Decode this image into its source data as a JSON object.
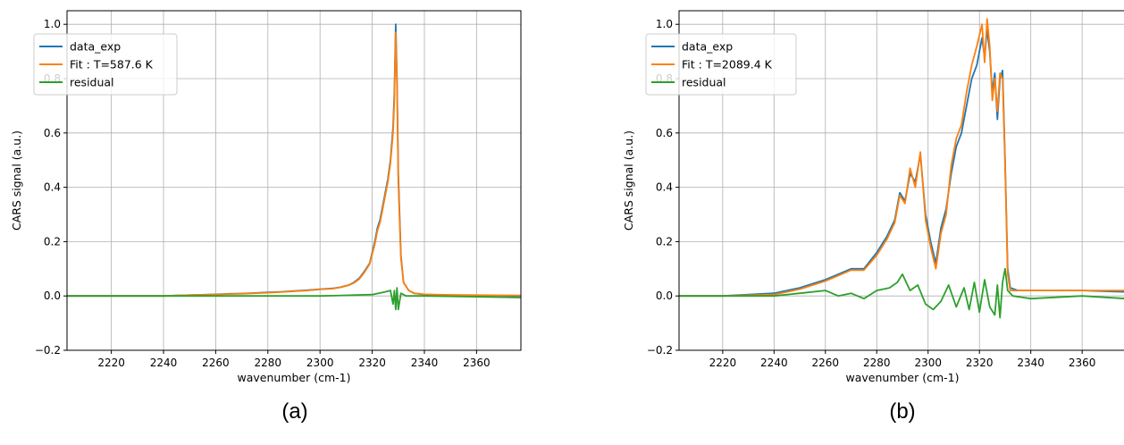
{
  "chart_data": [
    {
      "type": "line",
      "panel_label": "(a)",
      "xlabel": "wavenumber (cm-1)",
      "ylabel": "CARS signal (a.u.)",
      "xlim": [
        2203,
        2377
      ],
      "ylim": [
        -0.2,
        1.05
      ],
      "xticks": [
        2220,
        2240,
        2260,
        2280,
        2300,
        2320,
        2340,
        2360
      ],
      "yticks": [
        -0.2,
        0.0,
        0.2,
        0.4,
        0.6,
        0.8,
        1.0
      ],
      "ytick_labels": [
        "−0.2",
        "0.0",
        "0.2",
        "0.4",
        "0.6",
        "0.8",
        "1.0"
      ],
      "grid": true,
      "legend_position": "upper-left",
      "series": [
        {
          "name": "data_exp",
          "color": "#1f77b4",
          "x": [
            2203,
            2220,
            2240,
            2250,
            2260,
            2265,
            2270,
            2275,
            2280,
            2285,
            2290,
            2295,
            2300,
            2305,
            2308,
            2311,
            2313,
            2315,
            2317,
            2319,
            2320,
            2321,
            2322,
            2323,
            2324,
            2325,
            2326,
            2327,
            2328,
            2328.5,
            2329,
            2329.5,
            2330,
            2331,
            2332,
            2334,
            2336,
            2340,
            2350,
            2360,
            2377
          ],
          "y": [
            0.0,
            0.0,
            0.0,
            0.003,
            0.006,
            0.008,
            0.009,
            0.011,
            0.013,
            0.015,
            0.018,
            0.021,
            0.025,
            0.028,
            0.033,
            0.04,
            0.05,
            0.065,
            0.09,
            0.12,
            0.16,
            0.2,
            0.25,
            0.28,
            0.33,
            0.38,
            0.43,
            0.5,
            0.62,
            0.75,
            1.0,
            0.8,
            0.45,
            0.15,
            0.05,
            0.02,
            0.01,
            0.005,
            0.003,
            0.002,
            0.0
          ]
        },
        {
          "name": "Fit : T=587.6 K",
          "color": "#ff7f0e",
          "x": [
            2203,
            2220,
            2240,
            2250,
            2260,
            2265,
            2270,
            2275,
            2280,
            2285,
            2290,
            2295,
            2300,
            2305,
            2308,
            2311,
            2313,
            2315,
            2317,
            2319,
            2320,
            2321,
            2322,
            2323,
            2324,
            2325,
            2326,
            2327,
            2328,
            2328.5,
            2329,
            2329.5,
            2330,
            2331,
            2332,
            2334,
            2336,
            2340,
            2350,
            2360,
            2377
          ],
          "y": [
            0.0,
            0.0,
            0.0,
            0.003,
            0.005,
            0.007,
            0.008,
            0.01,
            0.012,
            0.014,
            0.017,
            0.02,
            0.024,
            0.027,
            0.032,
            0.039,
            0.048,
            0.062,
            0.087,
            0.117,
            0.155,
            0.19,
            0.24,
            0.27,
            0.32,
            0.37,
            0.42,
            0.49,
            0.6,
            0.72,
            0.97,
            0.78,
            0.42,
            0.14,
            0.05,
            0.02,
            0.01,
            0.006,
            0.004,
            0.003,
            0.002
          ]
        },
        {
          "name": "residual",
          "color": "#2ca02c",
          "x": [
            2203,
            2240,
            2270,
            2300,
            2320,
            2325,
            2327,
            2328,
            2328.5,
            2329,
            2329.5,
            2330,
            2331,
            2333,
            2340,
            2360,
            2377
          ],
          "y": [
            0.0,
            0.0,
            0.0,
            0.0,
            0.005,
            0.015,
            0.02,
            -0.03,
            0.02,
            -0.05,
            0.03,
            -0.05,
            0.01,
            0.0,
            0.0,
            -0.003,
            -0.006
          ]
        }
      ]
    },
    {
      "type": "line",
      "panel_label": "(b)",
      "xlabel": "wavenumber (cm-1)",
      "ylabel": "CARS signal (a.u.)",
      "xlim": [
        2203,
        2377
      ],
      "ylim": [
        -0.2,
        1.05
      ],
      "xticks": [
        2220,
        2240,
        2260,
        2280,
        2300,
        2320,
        2340,
        2360
      ],
      "yticks": [
        -0.2,
        0.0,
        0.2,
        0.4,
        0.6,
        0.8,
        1.0
      ],
      "ytick_labels": [
        "−0.2",
        "0.0",
        "0.2",
        "0.4",
        "0.6",
        "0.8",
        "1.0"
      ],
      "grid": true,
      "legend_position": "upper-left",
      "series": [
        {
          "name": "data_exp",
          "color": "#1f77b4",
          "x": [
            2203,
            2220,
            2240,
            2250,
            2260,
            2265,
            2270,
            2275,
            2280,
            2284,
            2287,
            2289,
            2291,
            2293,
            2295,
            2297,
            2299,
            2301,
            2303,
            2305,
            2307,
            2309,
            2311,
            2313,
            2315,
            2317,
            2319,
            2321,
            2322,
            2323,
            2324,
            2325,
            2326,
            2327,
            2328,
            2329,
            2330,
            2331,
            2332,
            2335,
            2340,
            2360,
            2377
          ],
          "y": [
            0.0,
            0.0,
            0.01,
            0.03,
            0.06,
            0.08,
            0.1,
            0.1,
            0.16,
            0.22,
            0.28,
            0.38,
            0.35,
            0.45,
            0.42,
            0.52,
            0.3,
            0.2,
            0.12,
            0.25,
            0.32,
            0.45,
            0.55,
            0.6,
            0.7,
            0.8,
            0.85,
            0.95,
            0.88,
            0.98,
            0.9,
            0.75,
            0.82,
            0.65,
            0.8,
            0.83,
            0.5,
            0.1,
            0.03,
            0.02,
            0.02,
            0.02,
            0.015
          ]
        },
        {
          "name": "Fit : T=2089.4 K",
          "color": "#ff7f0e",
          "x": [
            2203,
            2220,
            2240,
            2250,
            2260,
            2265,
            2270,
            2275,
            2280,
            2284,
            2287,
            2289,
            2291,
            2293,
            2295,
            2297,
            2299,
            2301,
            2303,
            2305,
            2307,
            2309,
            2311,
            2313,
            2315,
            2317,
            2319,
            2321,
            2322,
            2323,
            2324,
            2325,
            2326,
            2327,
            2328,
            2329,
            2330,
            2331,
            2332,
            2335,
            2340,
            2360,
            2377
          ],
          "y": [
            0.0,
            0.0,
            0.005,
            0.025,
            0.055,
            0.075,
            0.095,
            0.095,
            0.15,
            0.21,
            0.27,
            0.37,
            0.34,
            0.47,
            0.4,
            0.53,
            0.28,
            0.18,
            0.1,
            0.23,
            0.3,
            0.48,
            0.58,
            0.63,
            0.75,
            0.85,
            0.92,
            1.0,
            0.86,
            1.02,
            0.92,
            0.72,
            0.8,
            0.68,
            0.82,
            0.8,
            0.48,
            0.08,
            0.02,
            0.02,
            0.02,
            0.02,
            0.02
          ]
        },
        {
          "name": "residual",
          "color": "#2ca02c",
          "x": [
            2203,
            2220,
            2240,
            2250,
            2260,
            2265,
            2270,
            2275,
            2280,
            2285,
            2288,
            2290,
            2293,
            2296,
            2299,
            2302,
            2305,
            2308,
            2311,
            2314,
            2316,
            2318,
            2320,
            2322,
            2324,
            2326,
            2327,
            2328,
            2329,
            2330,
            2331,
            2333,
            2340,
            2360,
            2377
          ],
          "y": [
            0.0,
            0.0,
            0.0,
            0.01,
            0.02,
            0.0,
            0.01,
            -0.01,
            0.02,
            0.03,
            0.05,
            0.08,
            0.02,
            0.04,
            -0.03,
            -0.05,
            -0.02,
            0.04,
            -0.04,
            0.03,
            -0.05,
            0.05,
            -0.06,
            0.06,
            -0.04,
            -0.07,
            0.04,
            -0.08,
            0.05,
            0.1,
            0.02,
            0.0,
            -0.01,
            0.0,
            -0.01
          ]
        }
      ]
    }
  ]
}
